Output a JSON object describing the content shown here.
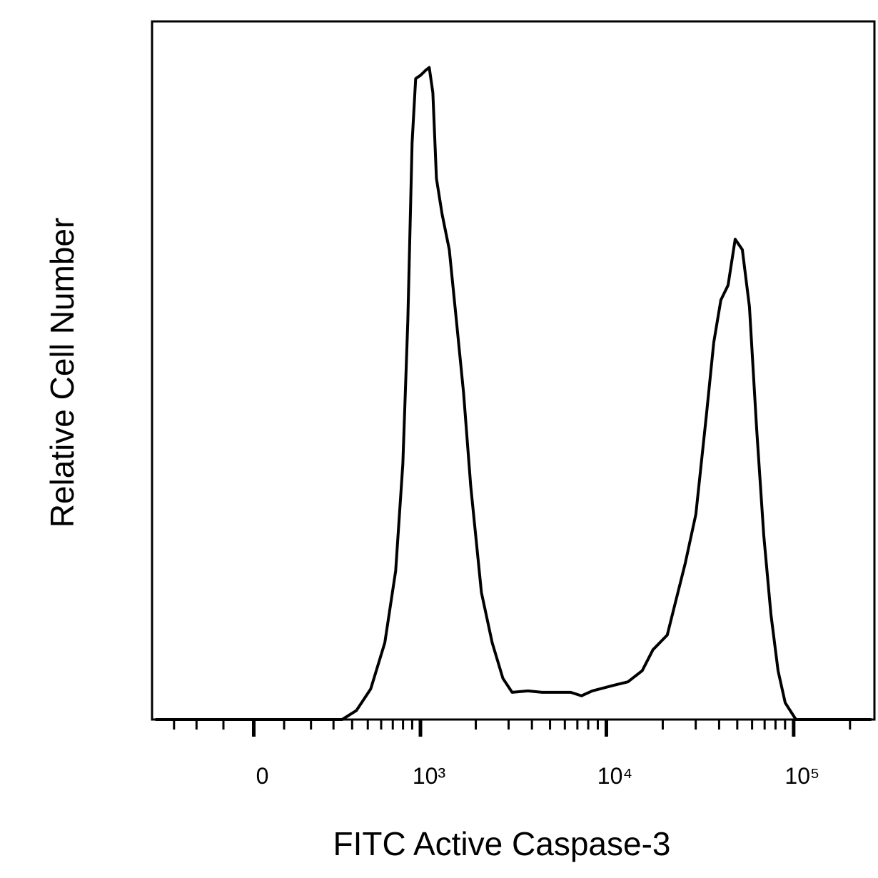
{
  "chart_data": {
    "type": "line",
    "x_label": "FITC Active Caspase-3",
    "y_label": "Relative Cell Number",
    "xscale": "asinh",
    "xlim": [
      -420,
      270000
    ],
    "ylim": [
      0,
      100
    ],
    "xticks": [
      0,
      {
        "value": 1000,
        "label": "10³"
      },
      {
        "value": 10000,
        "label": "10⁴"
      },
      {
        "value": 100000,
        "label": "10⁵"
      }
    ],
    "xminor_ticks": [
      -300,
      -200,
      -100,
      100,
      200,
      300,
      400,
      500,
      600,
      700,
      800,
      900,
      2000,
      3000,
      4000,
      5000,
      6000,
      7000,
      8000,
      9000,
      20000,
      30000,
      40000,
      50000,
      60000,
      70000,
      80000,
      90000,
      200000
    ],
    "series": [
      {
        "color": "#000000",
        "x": [
          -400,
          344,
          426,
          521,
          630,
          727,
          798,
          851,
          899,
          941,
          1003,
          1069,
          1118,
          1170,
          1224,
          1314,
          1438,
          1572,
          1718,
          1877,
          2144,
          2450,
          2796,
          3134,
          3806,
          4538,
          6453,
          7362,
          8400,
          10936,
          13037,
          15540,
          17737,
          21143,
          23082,
          26331,
          30051,
          34270,
          37440,
          40872,
          44645,
          48732,
          53212,
          58085,
          63430,
          69247,
          75613,
          82556,
          90154,
          102861,
          260000
        ],
        "values": [
          0,
          0,
          1.3,
          4.4,
          11.0,
          21.3,
          36.6,
          57.1,
          82.6,
          91.8,
          92.3,
          93.0,
          93.4,
          89.8,
          77.5,
          72.4,
          67.3,
          57.1,
          46.8,
          33.5,
          18.2,
          11.0,
          5.9,
          3.9,
          4.1,
          3.9,
          3.9,
          3.4,
          4.1,
          4.9,
          5.4,
          7.0,
          10.0,
          12.1,
          16.2,
          22.3,
          29.4,
          43.8,
          54.0,
          60.1,
          62.2,
          68.8,
          67.3,
          59.1,
          41.7,
          26.4,
          15.1,
          7.0,
          2.4,
          0,
          0
        ]
      }
    ]
  }
}
